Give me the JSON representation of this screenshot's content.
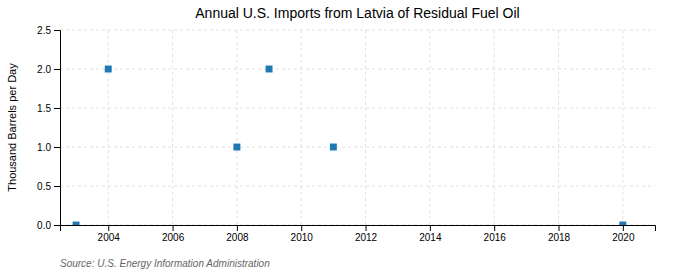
{
  "chart_data": {
    "type": "scatter",
    "title": "Annual U.S. Imports from Latvia of Residual Fuel Oil",
    "ylabel": "Thousand Barrels per Day",
    "source": "Source: U.S. Energy Information Administration",
    "x": [
      2003,
      2004,
      2008,
      2009,
      2011,
      2020
    ],
    "values": [
      0.0,
      2.0,
      1.0,
      2.0,
      1.0,
      0.0
    ],
    "marker": "square",
    "xlim": [
      2002.5,
      2021
    ],
    "xticks": [
      2004,
      2006,
      2008,
      2010,
      2012,
      2014,
      2016,
      2018,
      2020
    ],
    "ylim": [
      0.0,
      2.5
    ],
    "yticks": [
      {
        "value": 0.0,
        "label": "0.0"
      },
      0.5,
      {
        "value": 1.0,
        "label": "1.0"
      },
      1.5,
      {
        "value": 2.0,
        "label": "2.0"
      },
      2.5
    ],
    "grid": true
  }
}
